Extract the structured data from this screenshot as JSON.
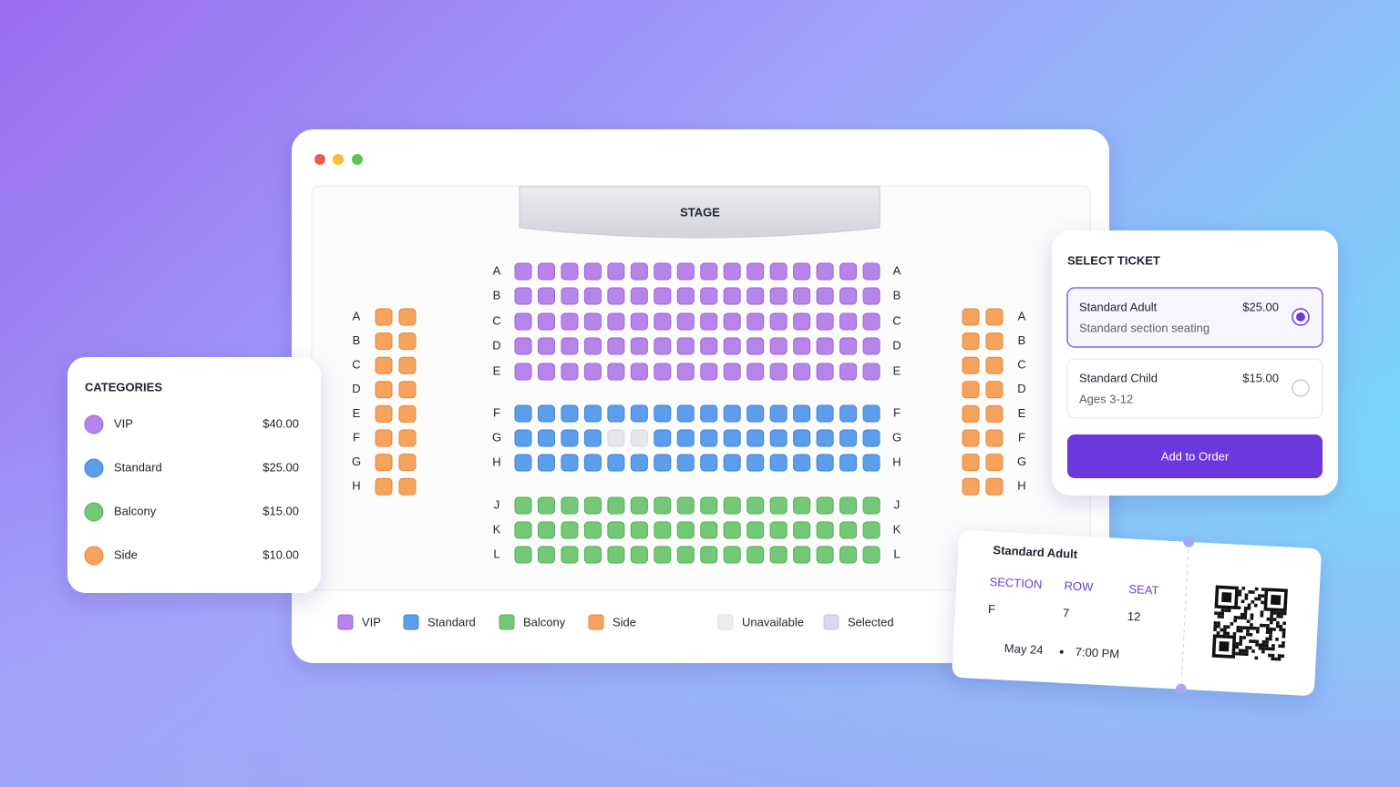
{
  "stage": "STAGE",
  "seat_map": {
    "center_sections": [
      {
        "rows": [
          "A",
          "B",
          "C",
          "D",
          "E"
        ]
      },
      {
        "rows": [
          "F",
          "G",
          "H"
        ]
      },
      {
        "rows": [
          "J",
          "K",
          "L"
        ]
      }
    ],
    "side_rows": [
      "A",
      "B",
      "C",
      "D",
      "E",
      "F",
      "G",
      "H"
    ]
  },
  "legend": [
    "VIP",
    "Standard",
    "Balcony",
    "Side",
    "Unavailable",
    "Selected"
  ],
  "categories": {
    "title": "CATEGORIES",
    "items": [
      {
        "name": "VIP",
        "price": "$40.00"
      },
      {
        "name": "Standard",
        "price": "$25.00"
      },
      {
        "name": "Balcony",
        "price": "$15.00"
      },
      {
        "name": "Side",
        "price": "$10.00"
      }
    ]
  },
  "select_ticket": {
    "title": "SELECT TICKET",
    "options": [
      {
        "name": "Standard Adult",
        "price": "$25.00",
        "note": "Standard section seating"
      },
      {
        "name": "Standard Child",
        "price": "$15.00",
        "note": "Ages 3-12"
      }
    ],
    "button": "Add to Order"
  },
  "ticket": {
    "title": "Standard Adult",
    "fields": [
      {
        "label": "SECTION",
        "value": "F"
      },
      {
        "label": "ROW",
        "value": "7"
      },
      {
        "label": "SEAT",
        "value": "12"
      }
    ],
    "date": "May 24",
    "time": "7:00 PM"
  }
}
